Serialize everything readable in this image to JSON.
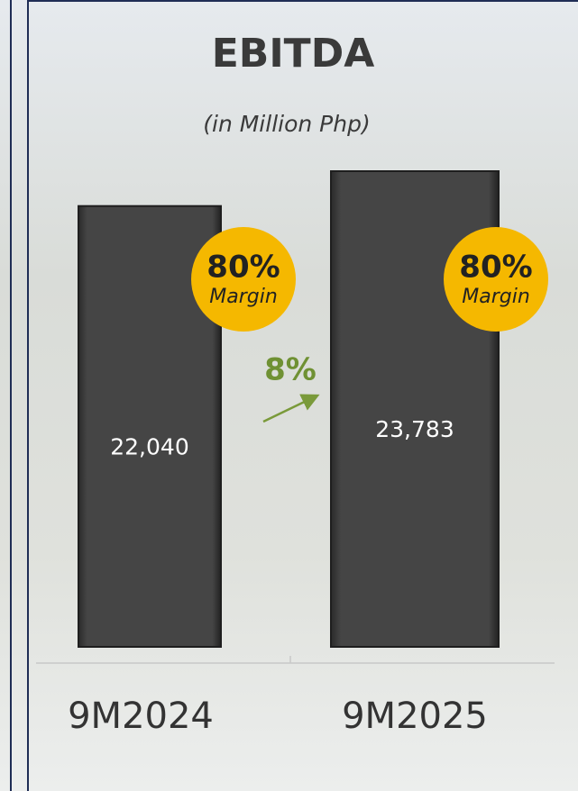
{
  "chart_data": {
    "type": "bar",
    "title": "EBITDA",
    "subtitle": "(in Million Php)",
    "categories": [
      "9M2024",
      "9M2025"
    ],
    "values": [
      22040,
      23783
    ],
    "value_labels": [
      "22,040",
      "23,783"
    ],
    "color": "#404040",
    "annotations": [
      {
        "text": "80%",
        "caption": "Margin"
      },
      {
        "text": "80%",
        "caption": "Margin"
      }
    ],
    "growth": "8%"
  }
}
